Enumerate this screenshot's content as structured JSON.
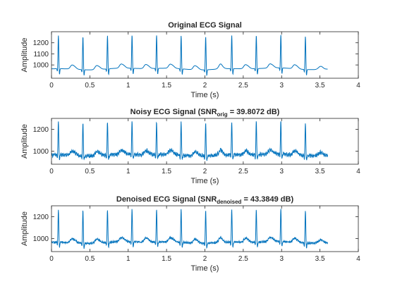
{
  "colors": {
    "line": "#0072BD",
    "axes": "#262626",
    "background": "#ffffff"
  },
  "chart_data": [
    {
      "type": "line",
      "title": "Original ECG Signal",
      "title_sub": "",
      "title_tail": "",
      "xlabel": "Time (s)",
      "ylabel": "Amplitude",
      "xlim": [
        0,
        4
      ],
      "ylim": [
        880,
        1300
      ],
      "x_ticks": [
        "0",
        "0.5",
        "1",
        "1.5",
        "2",
        "2.5",
        "3",
        "3.5",
        "4"
      ],
      "y_ticks": [
        "1000",
        "1100",
        "1200"
      ],
      "grid": false,
      "series": [
        {
          "noise": 0.0,
          "x": [
            0,
            3.6
          ],
          "r_peaks": [
            0.09,
            0.41,
            0.73,
            1.05,
            1.37,
            1.69,
            2.01,
            2.35,
            2.67,
            2.99,
            3.31
          ]
        }
      ]
    },
    {
      "type": "line",
      "title": "Noisy ECG Signal (SNR",
      "title_sub": "orig",
      "title_tail": " = 39.8072 dB)",
      "xlabel": "Time (s)",
      "ylabel": "Amplitude",
      "xlim": [
        0,
        4
      ],
      "ylim": [
        880,
        1300
      ],
      "x_ticks": [
        "0",
        "0.5",
        "1",
        "1.5",
        "2",
        "2.5",
        "3",
        "3.5",
        "4"
      ],
      "y_ticks": [
        "1000",
        "1200"
      ],
      "grid": false,
      "series": [
        {
          "noise": 1.0,
          "x": [
            0,
            3.6
          ],
          "r_peaks": [
            0.09,
            0.41,
            0.73,
            1.05,
            1.37,
            1.69,
            2.01,
            2.35,
            2.67,
            2.99,
            3.31
          ]
        }
      ]
    },
    {
      "type": "line",
      "title": "Denoised ECG Signal (SNR",
      "title_sub": "denoised",
      "title_tail": " = 43.3849 dB)",
      "xlabel": "Time (s)",
      "ylabel": "Amplitude",
      "xlim": [
        0,
        4
      ],
      "ylim": [
        880,
        1300
      ],
      "x_ticks": [
        "0",
        "0.5",
        "1",
        "1.5",
        "2",
        "2.5",
        "3",
        "3.5",
        "4"
      ],
      "y_ticks": [
        "1000",
        "1200"
      ],
      "grid": false,
      "series": [
        {
          "noise": 0.55,
          "x": [
            0,
            3.6
          ],
          "r_peaks": [
            0.09,
            0.41,
            0.73,
            1.05,
            1.37,
            1.69,
            2.01,
            2.35,
            2.67,
            2.99,
            3.31
          ]
        }
      ]
    }
  ]
}
